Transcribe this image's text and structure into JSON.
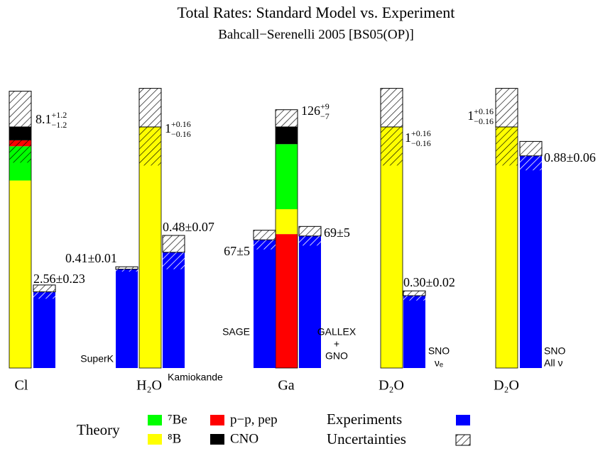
{
  "chart_data": {
    "type": "bar",
    "title": "Total Rates: Standard Model vs. Experiment",
    "subtitle": "Bahcall−Serenelli 2005 [BS05(OP)]",
    "theory_label": "Theory",
    "experiments_label": "Experiments",
    "experiments_color": "#0000ff",
    "uncertainties_label": "Uncertainties",
    "components": [
      {
        "name": "⁸B",
        "color": "#ffff00"
      },
      {
        "name": "⁷Be",
        "color": "#00ff00"
      },
      {
        "name": "p−p, pep",
        "color": "#ff0000"
      },
      {
        "name": "CNO",
        "color": "#000000"
      }
    ],
    "groups": [
      {
        "label": "Cl",
        "theory": [
          6.3,
          1.15,
          0.2,
          0.45
        ],
        "theory_total": 8.1,
        "theory_errors": [
          1.2,
          1.2
        ],
        "theory_error_labels": [
          "+1.2",
          "−1.2"
        ],
        "experiments": [
          {
            "value": 2.56,
            "error": 0.23,
            "value_label": "2.56±0.23"
          }
        ]
      },
      {
        "label": "H₂O",
        "theory": [
          1.0,
          null,
          null,
          null
        ],
        "theory_total": 1.0,
        "theory_errors": [
          0.16,
          0.16
        ],
        "theory_error_labels": [
          "+0.16",
          "−0.16"
        ],
        "experiments": [
          {
            "name": [
              "SuperK"
            ],
            "value": 0.41,
            "error": 0.01,
            "value_label": "0.41±0.01"
          },
          {
            "name": [
              "Kamiokande"
            ],
            "value": 0.48,
            "error": 0.07,
            "value_label": "0.48±0.07"
          }
        ]
      },
      {
        "label": "Ga",
        "theory": [
          13,
          34,
          70,
          9
        ],
        "theory_total": 126,
        "theory_errors": [
          9,
          7
        ],
        "theory_error_labels": [
          "+9",
          "−7"
        ],
        "experiments": [
          {
            "name": [
              "SAGE"
            ],
            "value": 67,
            "error": 5,
            "value_label": "67±5"
          },
          {
            "name": [
              "GALLEX",
              "+",
              "GNO"
            ],
            "value": 69,
            "error": 5,
            "value_label": "69±5"
          }
        ]
      },
      {
        "label": "D₂O",
        "theory": [
          1.0,
          null,
          null,
          null
        ],
        "theory_total": 1.0,
        "theory_errors": [
          0.16,
          0.16
        ],
        "theory_error_labels": [
          "+0.16",
          "−0.16"
        ],
        "experiments": [
          {
            "name": [
              "SNO",
              "νₑ"
            ],
            "value": 0.3,
            "error": 0.02,
            "value_label": "0.30±0.02"
          }
        ]
      },
      {
        "label": "D₂O",
        "theory": [
          1.0,
          null,
          null,
          null
        ],
        "theory_total": 1.0,
        "theory_errors": [
          0.16,
          0.16
        ],
        "theory_error_labels": [
          "+0.16",
          "−0.16"
        ],
        "experiments": [
          {
            "name": [
              "SNO",
              "All ν"
            ],
            "value": 0.88,
            "error": 0.06,
            "value_label": "0.88±0.06"
          }
        ]
      }
    ]
  }
}
